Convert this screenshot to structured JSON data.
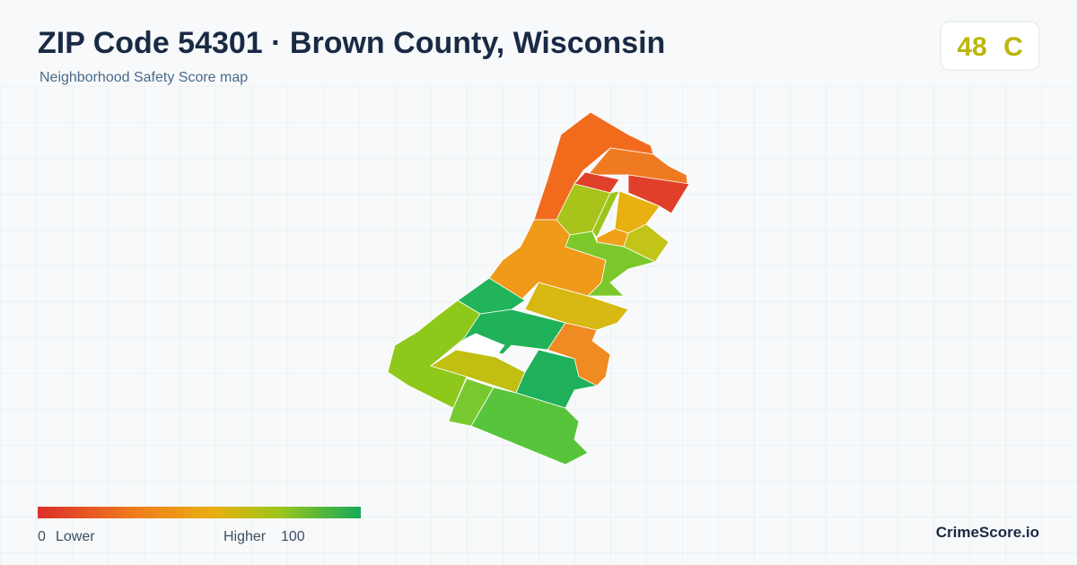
{
  "header": {
    "title": "ZIP Code 54301 · Brown County, Wisconsin",
    "subtitle": "Neighborhood Safety Score map"
  },
  "score": {
    "value": 48,
    "grade": "C"
  },
  "legend": {
    "min": 0,
    "min_label": "Lower",
    "max_label": "Higher",
    "max": 100
  },
  "brand": "CrimeScore.io"
}
